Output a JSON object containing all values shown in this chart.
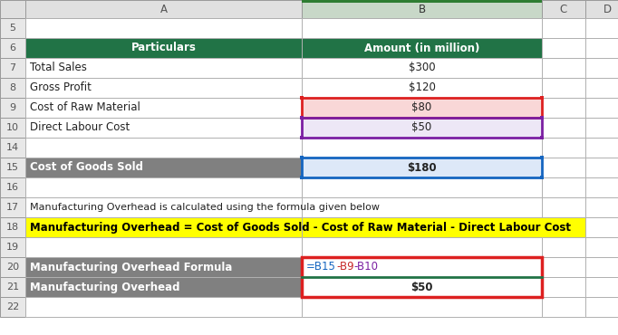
{
  "background": "#ffffff",
  "col_header_bg": "#d9d9d9",
  "col_b_header_bg": "#c8c8c8",
  "col_b_header_highlight": "#2e7d32",
  "row_label_bg": "#e8e8e8",
  "row6_bg": "#217346",
  "row6_text": "#ffffff",
  "row9_bg": "#f9d7d7",
  "row9_text": "#000000",
  "row10_bg": "#ede7f6",
  "row10_text": "#000000",
  "row15_a_bg": "#808080",
  "row15_a_text": "#ffffff",
  "row15_b_bg": "#dde8f8",
  "row20_a_bg": "#808080",
  "row20_a_text": "#ffffff",
  "row21_a_bg": "#808080",
  "row21_a_text": "#ffffff",
  "row18_bg": "#ffff00",
  "row18_text": "#000000",
  "grid_color": "#b0b0b0",
  "formula_blue": "#1565C0",
  "formula_red": "#c62828",
  "formula_purple": "#7b1fa2",
  "border_red": "#dd2020",
  "border_purple": "#7b1fa2",
  "border_blue": "#1565C0",
  "border_green": "#217346",
  "default_text": "#222222",
  "rows": [
    {
      "num": "5",
      "a": "",
      "b": "",
      "type": "empty"
    },
    {
      "num": "6",
      "a": "Particulars",
      "b": "Amount (in million)",
      "type": "header"
    },
    {
      "num": "7",
      "a": "Total Sales",
      "b": "$300",
      "type": "data"
    },
    {
      "num": "8",
      "a": "Gross Profit",
      "b": "$120",
      "type": "data"
    },
    {
      "num": "9",
      "a": "Cost of Raw Material",
      "b": "$80",
      "type": "raw_material"
    },
    {
      "num": "10",
      "a": "Direct Labour Cost",
      "b": "$50",
      "type": "labour"
    },
    {
      "num": "14",
      "a": "",
      "b": "",
      "type": "empty"
    },
    {
      "num": "15",
      "a": "Cost of Goods Sold",
      "b": "$180",
      "type": "cogs"
    },
    {
      "num": "16",
      "a": "",
      "b": "",
      "type": "empty"
    },
    {
      "num": "17",
      "a": "Manufacturing Overhead is calculated using the formula given below",
      "b": "",
      "type": "note"
    },
    {
      "num": "18",
      "a": "Manufacturing Overhead = Cost of Goods Sold - Cost of Raw Material - Direct Labour Cost",
      "b": "",
      "type": "formula_label"
    },
    {
      "num": "19",
      "a": "",
      "b": "",
      "type": "empty"
    },
    {
      "num": "20",
      "a": "Manufacturing Overhead Formula",
      "b": "=B15-B9-B10",
      "type": "formula_row"
    },
    {
      "num": "21",
      "a": "Manufacturing Overhead",
      "b": "$50",
      "type": "result"
    },
    {
      "num": "22",
      "a": "",
      "b": "",
      "type": "empty"
    }
  ]
}
